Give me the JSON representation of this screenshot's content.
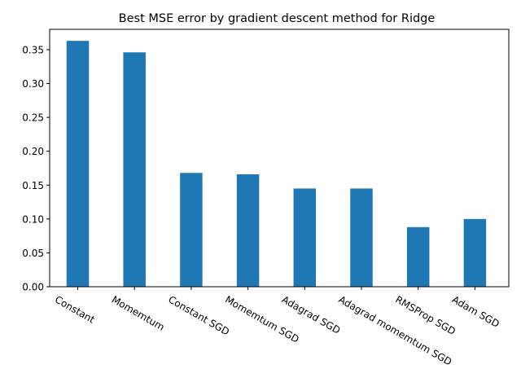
{
  "chart_data": {
    "type": "bar",
    "title": "Best MSE error by gradient descent method for Ridge",
    "xlabel": "",
    "ylabel": "",
    "categories": [
      "Constant",
      "Momemtum",
      "Constant SGD",
      "Momemtum SGD",
      "Adagrad SGD",
      "Adagrad momemtum SGD",
      "RMSProp SGD",
      "Adam SGD"
    ],
    "values": [
      0.363,
      0.346,
      0.168,
      0.166,
      0.145,
      0.145,
      0.088,
      0.1
    ],
    "ylim": [
      0,
      0.38
    ],
    "yticks": [
      "0.00",
      "0.05",
      "0.10",
      "0.15",
      "0.20",
      "0.25",
      "0.30",
      "0.35"
    ],
    "bar_color": "#1f77b4",
    "grid": false,
    "legend": "none"
  }
}
